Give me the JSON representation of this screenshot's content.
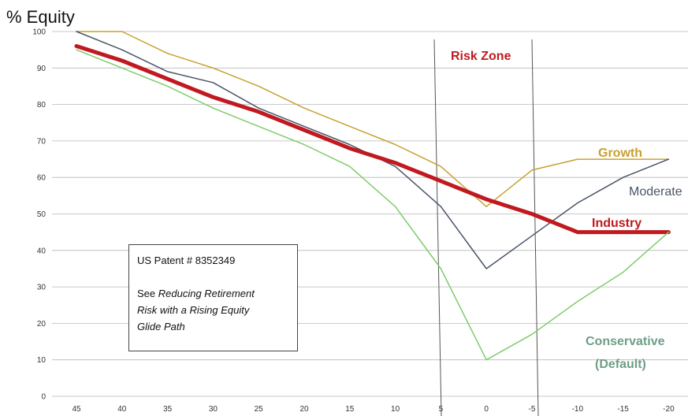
{
  "chart_data": {
    "type": "line",
    "ylabel": "% Equity",
    "x": [
      "45",
      "40",
      "35",
      "30",
      "25",
      "20",
      "15",
      "10",
      "5",
      "0",
      "-5",
      "-10",
      "-15",
      "-20"
    ],
    "ylim": [
      0,
      100
    ],
    "yticks": [
      0,
      10,
      20,
      30,
      40,
      50,
      60,
      70,
      80,
      90,
      100
    ],
    "grid": "horizontal",
    "series": [
      {
        "name": "Growth",
        "color": "#c8a030",
        "width": 1.5,
        "values": [
          100,
          100,
          94,
          90,
          85,
          79,
          74,
          69,
          63,
          52,
          62,
          65,
          65,
          65
        ]
      },
      {
        "name": "Moderate",
        "color": "#4a5568",
        "width": 1.5,
        "values": [
          100,
          95,
          89,
          86,
          79,
          74,
          69,
          63,
          52,
          35,
          44,
          53,
          60,
          65
        ]
      },
      {
        "name": "Industry",
        "color": "#c0191f",
        "width": 5,
        "values": [
          96,
          92,
          87,
          82,
          78,
          73,
          68,
          64,
          59,
          54,
          50,
          45,
          45,
          45
        ]
      },
      {
        "name": "Conservative (Default)",
        "color": "#7fcc6a",
        "width": 1.5,
        "values": [
          95,
          90,
          85,
          79,
          74,
          69,
          63,
          52,
          35,
          10,
          17,
          26,
          34,
          45
        ]
      }
    ],
    "annotations": {
      "risk_zone": "Risk Zone",
      "labels": {
        "growth": "Growth",
        "moderate": "Moderate",
        "industry": "Industry",
        "conservative_1": "Conservative",
        "conservative_2": "(Default)"
      }
    }
  },
  "note": {
    "line1": "US Patent # 8352349",
    "line2a": "See ",
    "line2b": "Reducing Retirement",
    "line3": "Risk with a Rising  Equity",
    "line4": "Glide Path"
  },
  "colors": {
    "grid": "#b8b8b8",
    "risk_zone_text": "#c0191f",
    "conservative_text": "#6f9e86",
    "moderate_text": "#4a5568",
    "growth_text": "#c8a030",
    "industry_text": "#c0191f"
  }
}
